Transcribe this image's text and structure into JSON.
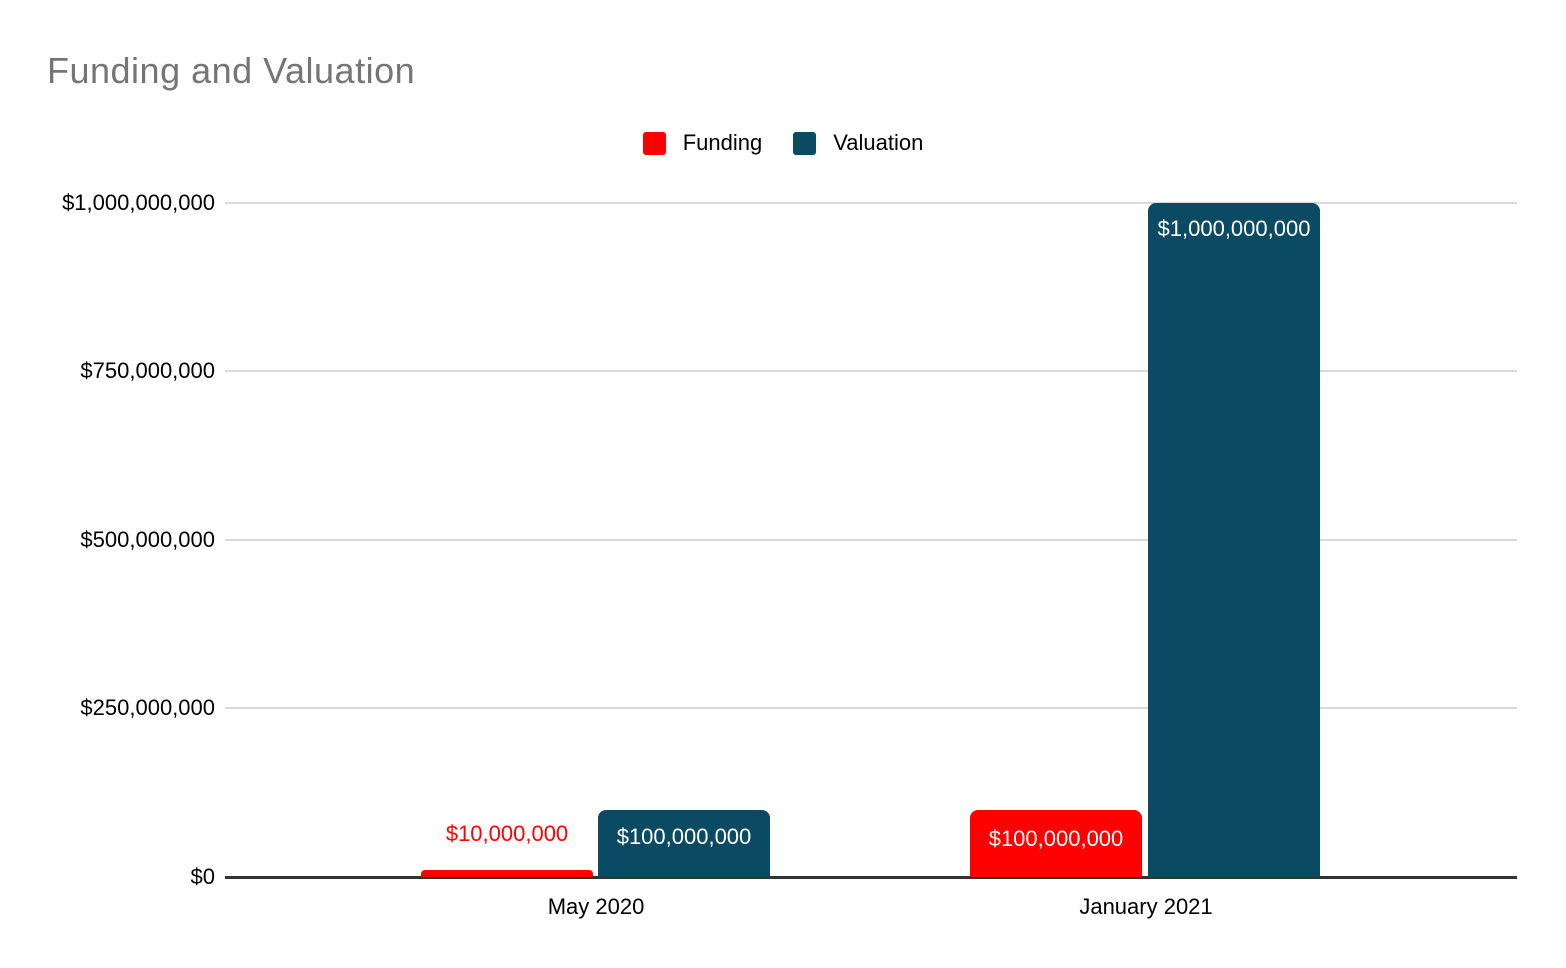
{
  "chart_data": {
    "type": "bar",
    "title": "Funding and Valuation",
    "categories": [
      "May 2020",
      "January 2021"
    ],
    "series": [
      {
        "name": "Funding",
        "color": "#ff0000",
        "values": [
          10000000,
          100000000
        ],
        "data_labels": [
          "$10,000,000",
          "$100,000,000"
        ]
      },
      {
        "name": "Valuation",
        "color": "#0b4a63",
        "values": [
          100000000,
          1000000000
        ],
        "data_labels": [
          "$100,000,000",
          "$1,000,000,000"
        ]
      }
    ],
    "xlabel": "",
    "ylabel": "",
    "ylim": [
      0,
      1000000000
    ],
    "ytick_labels": [
      "$0",
      "$250,000,000",
      "$500,000,000",
      "$750,000,000",
      "$1,000,000,000"
    ],
    "grid": true,
    "legend_position": "top",
    "colors": {
      "title_text": "#757575",
      "axis_text": "#000000",
      "gridline": "#d9d9d9",
      "baseline": "#333333",
      "data_label_inside": "#ffffff",
      "data_label_outside": "#ff0000",
      "background": "#ffffff"
    }
  }
}
